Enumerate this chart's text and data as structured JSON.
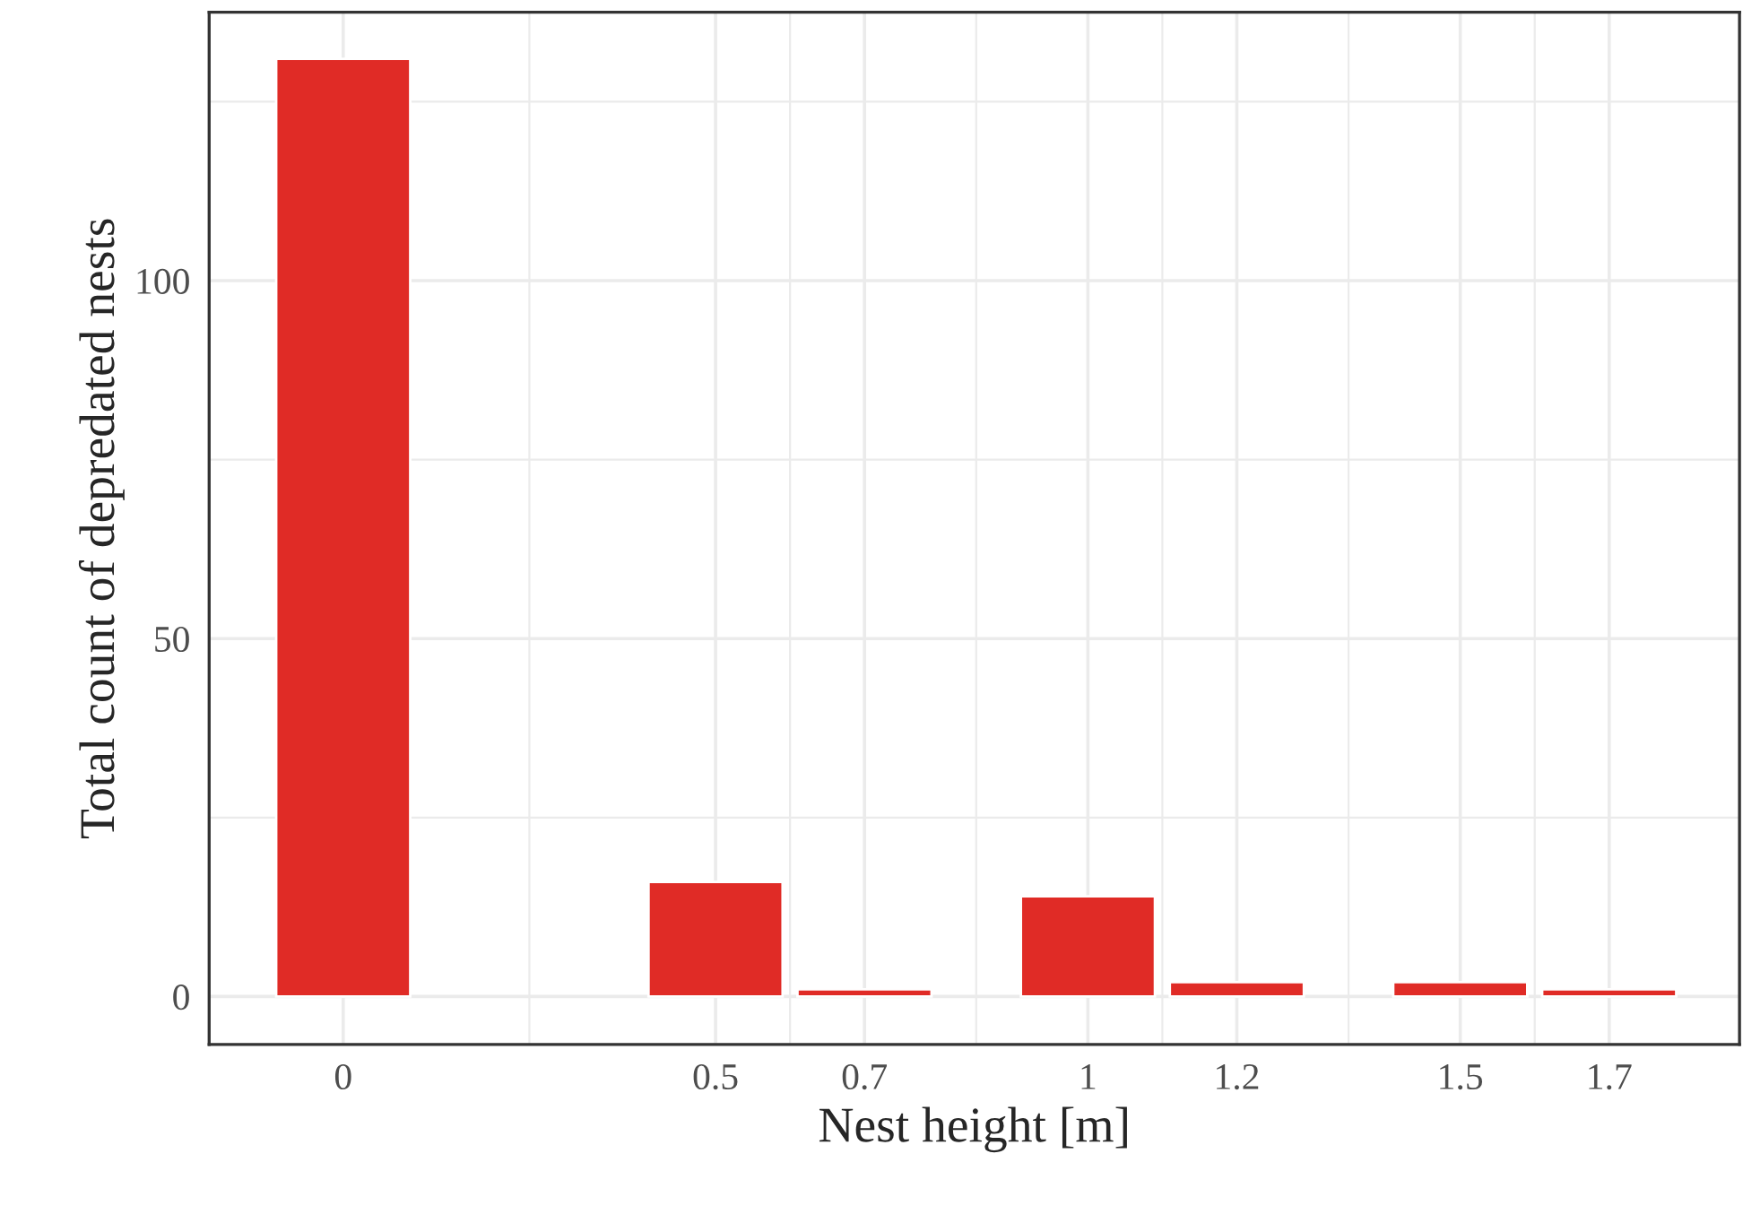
{
  "chart_data": {
    "type": "bar",
    "xlabel": "Nest height [m]",
    "ylabel": "Total count of depredated nests",
    "x": [
      0,
      0.5,
      0.7,
      1,
      1.2,
      1.5,
      1.7
    ],
    "values": [
      131,
      16,
      1,
      14,
      2,
      2,
      1
    ],
    "color": "#e02b26",
    "xlim": [
      -0.18,
      1.875
    ],
    "xticks": [
      0,
      0.5,
      0.7,
      1,
      1.2,
      1.5,
      1.7
    ],
    "ylim": [
      -6.7,
      137.5
    ],
    "yticks": [
      0,
      50,
      100
    ],
    "grid": true
  }
}
